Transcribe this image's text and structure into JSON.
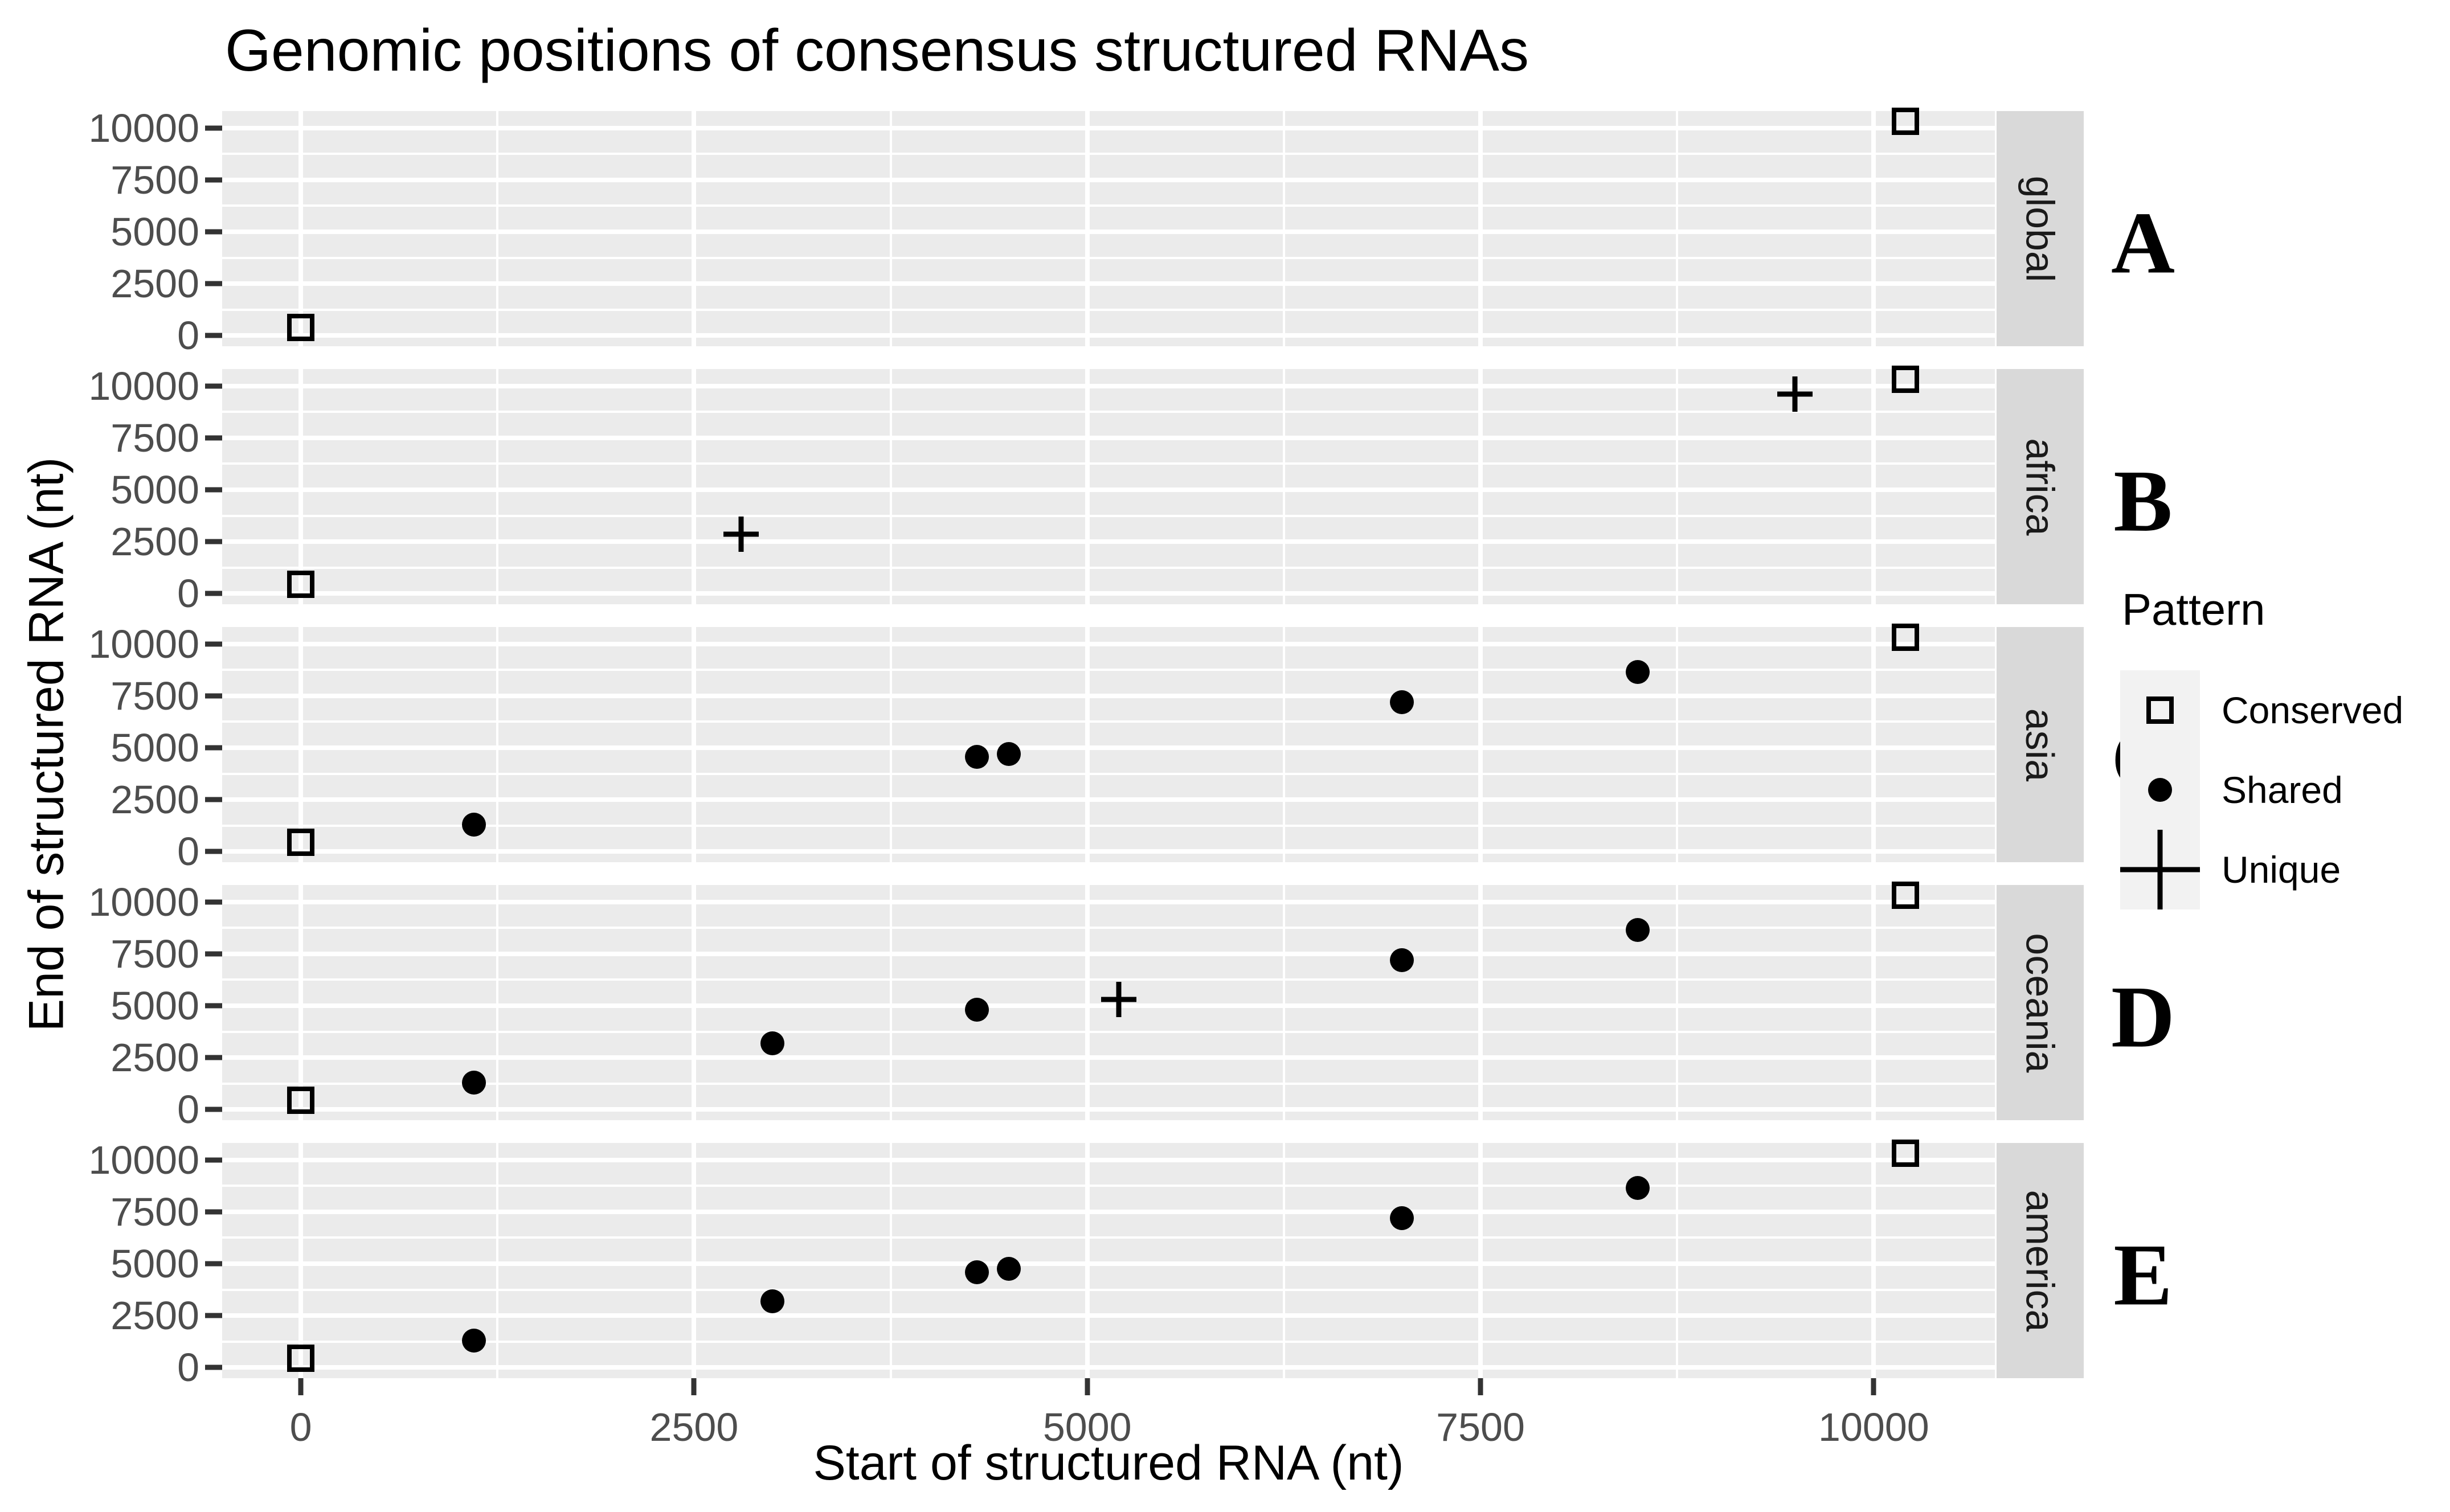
{
  "title": "Genomic positions of consensus structured RNAs",
  "axes": {
    "x_label": "Start of structured RNA (nt)",
    "y_label": "End of structured RNA (nt)",
    "x_ticks": [
      0,
      2500,
      5000,
      7500,
      10000
    ],
    "y_ticks": [
      0,
      2500,
      5000,
      7500,
      10000
    ]
  },
  "legend": {
    "title": "Pattern",
    "items": [
      {
        "label": "Conserved",
        "marker": "square"
      },
      {
        "label": "Shared",
        "marker": "circle"
      },
      {
        "label": "Unique",
        "marker": "plus"
      }
    ]
  },
  "colors": {
    "panel_background": "#EBEBEB",
    "gridline": "#FFFFFF",
    "strip_background": "#D9D9D9",
    "tick_text": "#4D4D4D",
    "marker": "#000000"
  },
  "chart_data": {
    "type": "scatter",
    "title": "Genomic positions of consensus structured RNAs",
    "xlabel": "Start of structured RNA (nt)",
    "ylabel": "End of structured RNA (nt)",
    "x_ticks": [
      0,
      2500,
      5000,
      7500,
      10000
    ],
    "y_ticks": [
      0,
      2500,
      5000,
      7500,
      10000
    ],
    "xlim": [
      -500,
      10770
    ],
    "ylim": [
      -515,
      10815
    ],
    "grid": "white major and minor lines on gray panels",
    "legend_position": "right",
    "facets": [
      {
        "tag": "A",
        "label": "global",
        "points": [
          {
            "x": 0,
            "y": 400,
            "pattern": "Conserved"
          },
          {
            "x": 10200,
            "y": 10330,
            "pattern": "Conserved"
          }
        ]
      },
      {
        "tag": "B",
        "label": "africa",
        "points": [
          {
            "x": 0,
            "y": 450,
            "pattern": "Conserved"
          },
          {
            "x": 10200,
            "y": 10330,
            "pattern": "Conserved"
          },
          {
            "x": 2800,
            "y": 2850,
            "pattern": "Unique"
          },
          {
            "x": 9500,
            "y": 9600,
            "pattern": "Unique"
          }
        ]
      },
      {
        "tag": "C",
        "label": "asia",
        "points": [
          {
            "x": 0,
            "y": 450,
            "pattern": "Conserved"
          },
          {
            "x": 10200,
            "y": 10330,
            "pattern": "Conserved"
          },
          {
            "x": 1100,
            "y": 1300,
            "pattern": "Shared"
          },
          {
            "x": 4300,
            "y": 4550,
            "pattern": "Shared"
          },
          {
            "x": 4500,
            "y": 4700,
            "pattern": "Shared"
          },
          {
            "x": 7000,
            "y": 7200,
            "pattern": "Shared"
          },
          {
            "x": 8500,
            "y": 8650,
            "pattern": "Shared"
          }
        ]
      },
      {
        "tag": "D",
        "label": "oceania",
        "points": [
          {
            "x": 0,
            "y": 450,
            "pattern": "Conserved"
          },
          {
            "x": 10200,
            "y": 10330,
            "pattern": "Conserved"
          },
          {
            "x": 1100,
            "y": 1300,
            "pattern": "Shared"
          },
          {
            "x": 3000,
            "y": 3200,
            "pattern": "Shared"
          },
          {
            "x": 4300,
            "y": 4800,
            "pattern": "Shared"
          },
          {
            "x": 5200,
            "y": 5300,
            "pattern": "Unique"
          },
          {
            "x": 7000,
            "y": 7200,
            "pattern": "Shared"
          },
          {
            "x": 8500,
            "y": 8650,
            "pattern": "Shared"
          }
        ]
      },
      {
        "tag": "E",
        "label": "america",
        "points": [
          {
            "x": 0,
            "y": 450,
            "pattern": "Conserved"
          },
          {
            "x": 10200,
            "y": 10330,
            "pattern": "Conserved"
          },
          {
            "x": 1100,
            "y": 1300,
            "pattern": "Shared"
          },
          {
            "x": 3000,
            "y": 3200,
            "pattern": "Shared"
          },
          {
            "x": 4300,
            "y": 4600,
            "pattern": "Shared"
          },
          {
            "x": 4500,
            "y": 4750,
            "pattern": "Shared"
          },
          {
            "x": 7000,
            "y": 7200,
            "pattern": "Shared"
          },
          {
            "x": 8500,
            "y": 8650,
            "pattern": "Shared"
          }
        ]
      }
    ]
  }
}
